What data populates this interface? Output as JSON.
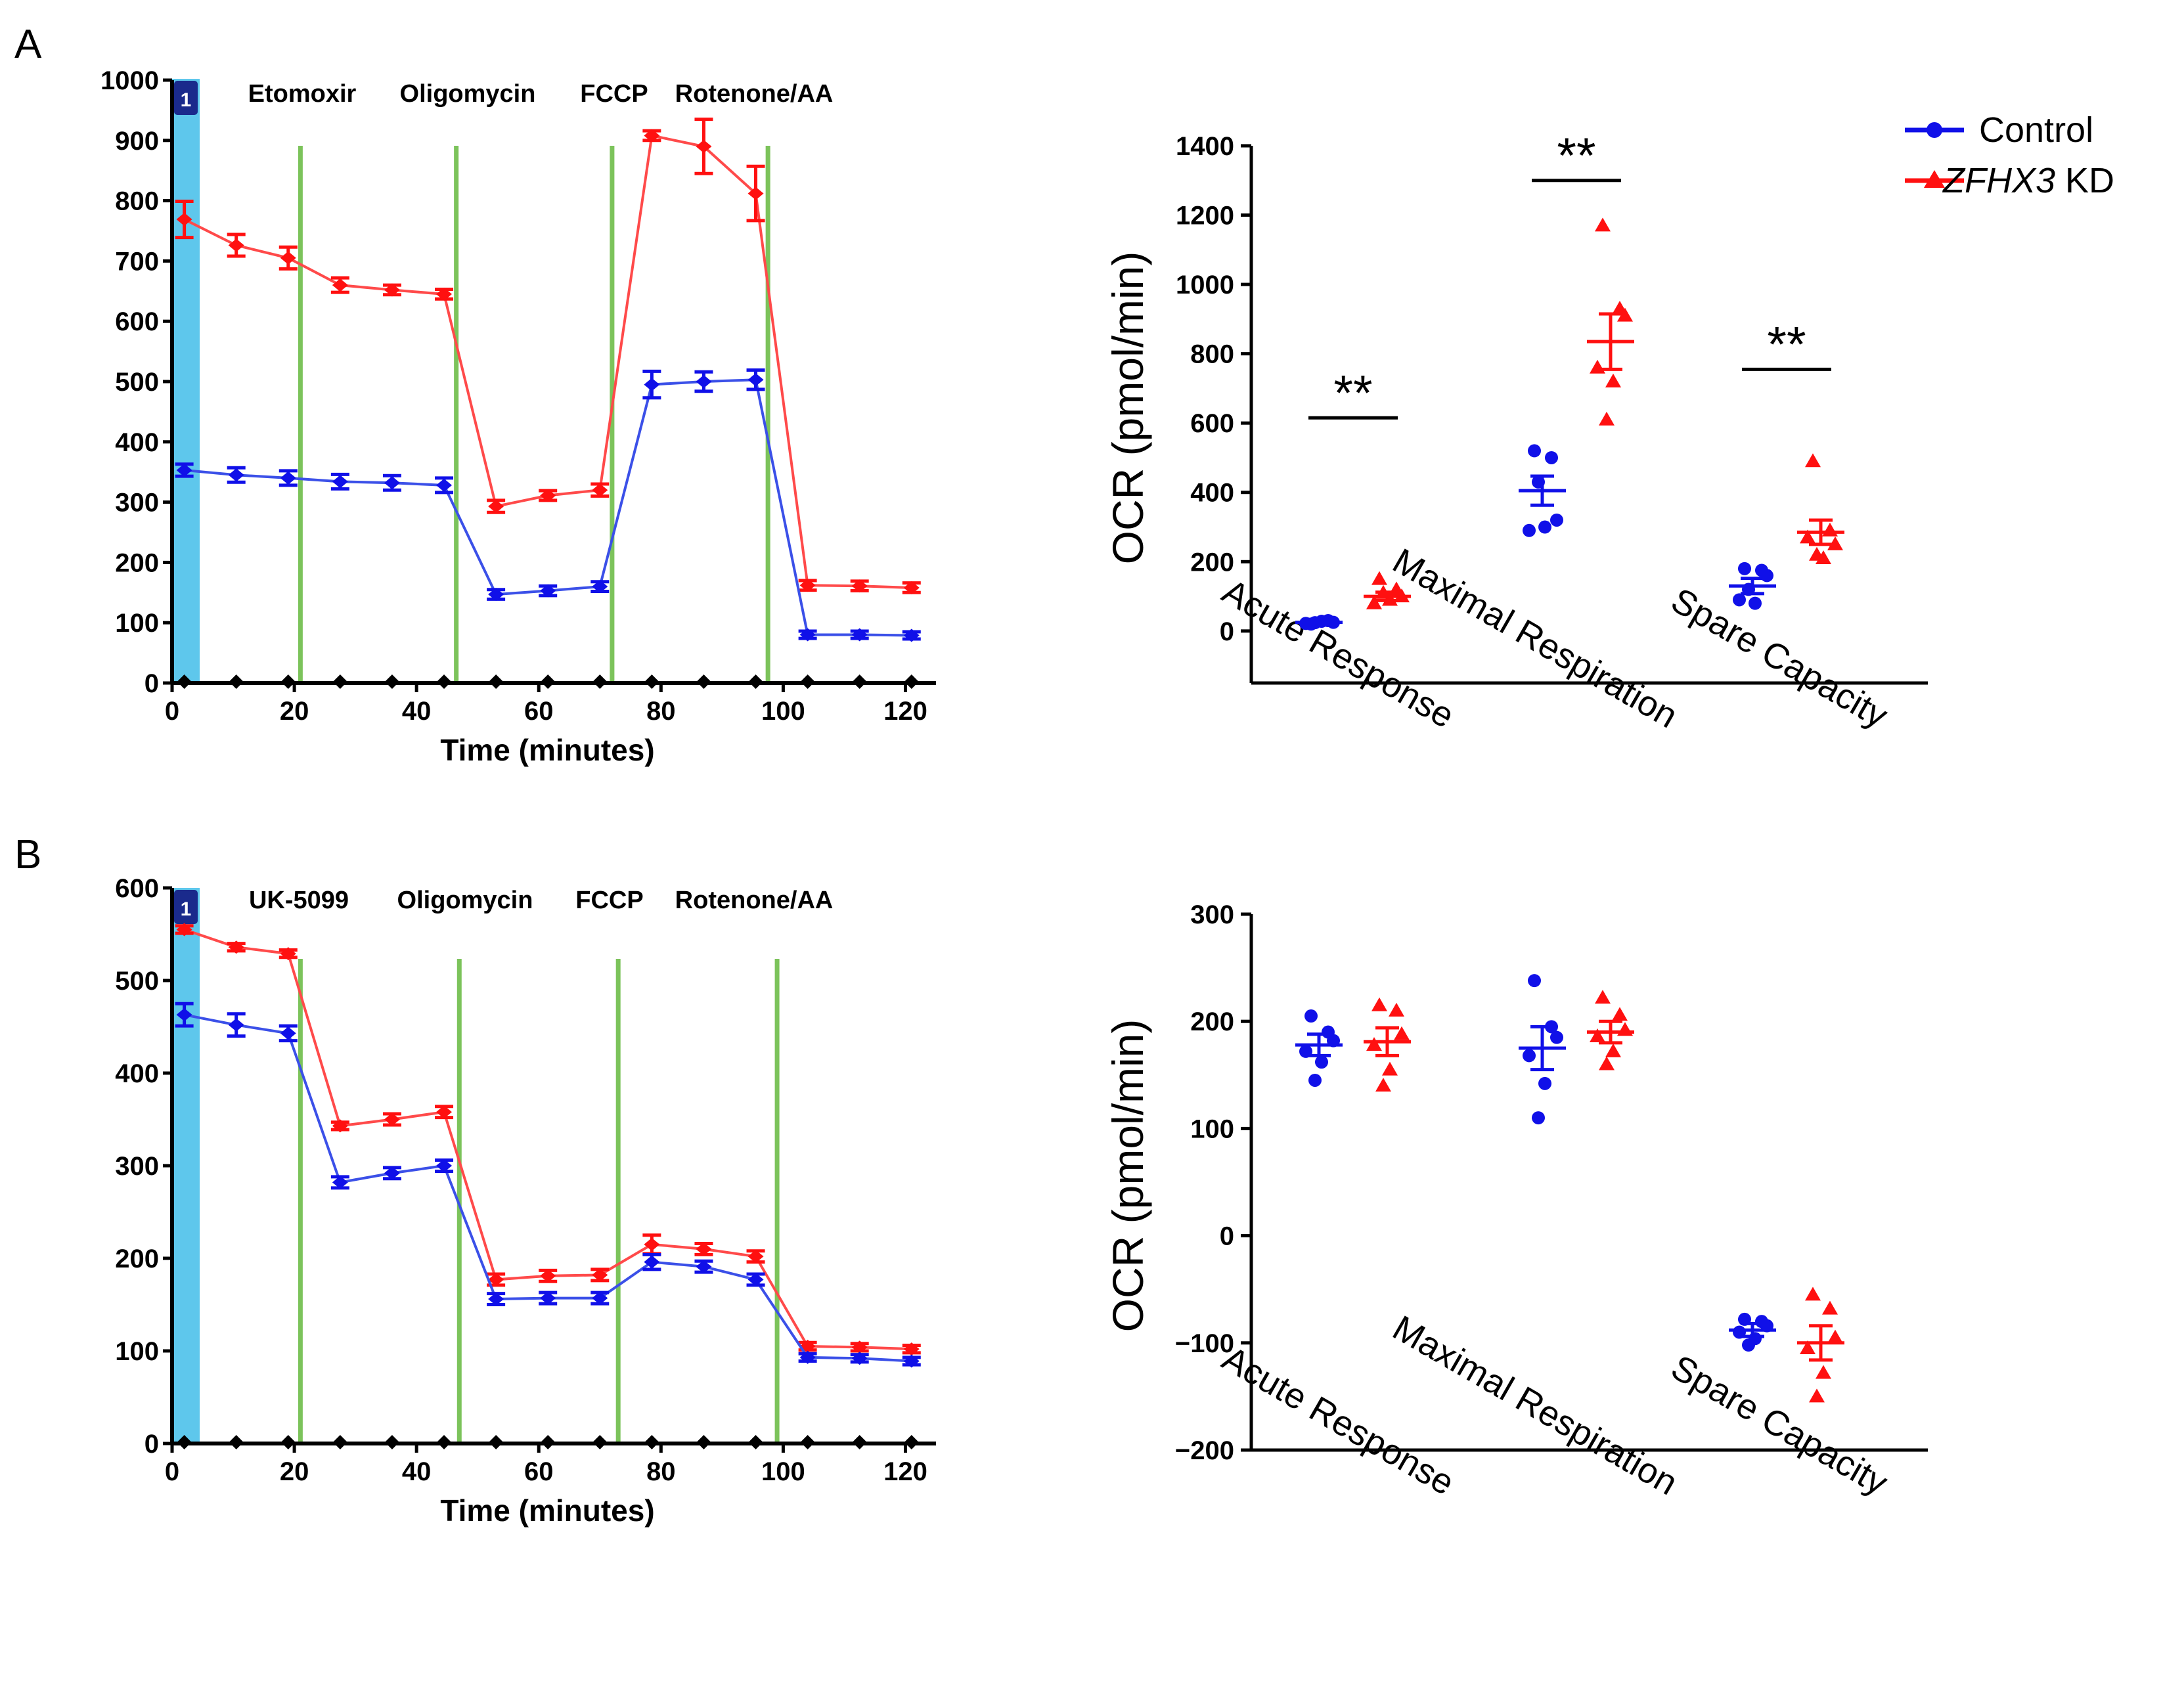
{
  "legend": {
    "control_label": "Control",
    "kd_gene": "ZFHX3",
    "kd_suffix": " KD",
    "control_color": "#1010e8",
    "kd_color": "#ff1010"
  },
  "panels": {
    "A": {
      "letter": "A",
      "port_label": "1",
      "drugs": [
        {
          "label": "Etomoxir",
          "x": 21
        },
        {
          "label": "Oligomycin",
          "x": 46.5
        },
        {
          "label": "FCCP",
          "x": 72
        },
        {
          "label": "Rotenone/AA",
          "x": 97.5
        }
      ],
      "significance": [
        {
          "label": "**",
          "category": 0
        },
        {
          "label": "**",
          "category": 1
        },
        {
          "label": "**",
          "category": 2
        }
      ]
    },
    "B": {
      "letter": "B",
      "port_label": "1",
      "drugs": [
        {
          "label": "UK-5099",
          "x": 21
        },
        {
          "label": "Oligomycin",
          "x": 47
        },
        {
          "label": "FCCP",
          "x": 73
        },
        {
          "label": "Rotenone/AA",
          "x": 99
        }
      ],
      "significance": []
    }
  },
  "chart_data": [
    {
      "id": "A-timecourse",
      "type": "line",
      "xlabel": "Time (minutes)",
      "ylabel": "",
      "xlim": [
        0,
        125
      ],
      "ylim": [
        0,
        1000
      ],
      "xticks": [
        "0",
        "20",
        "40",
        "60",
        "80",
        "100",
        "120"
      ],
      "yticks": [
        "0",
        "100",
        "200",
        "300",
        "400",
        "500",
        "600",
        "700",
        "800",
        "900",
        "1000"
      ],
      "x": [
        2,
        10.5,
        19,
        27.5,
        36,
        44.5,
        53,
        61.5,
        70,
        78.5,
        87,
        95.5,
        104,
        112.5,
        121
      ],
      "series": [
        {
          "name": "Control",
          "values": [
            353,
            345,
            340,
            334,
            332,
            328,
            147,
            153,
            160,
            495,
            500,
            503,
            80,
            80,
            79
          ],
          "errors": [
            10,
            12,
            12,
            12,
            12,
            12,
            8,
            8,
            8,
            22,
            16,
            16,
            6,
            6,
            6
          ]
        },
        {
          "name": "ZFHX3 KD",
          "values": [
            769,
            726,
            705,
            660,
            652,
            645,
            293,
            311,
            320,
            908,
            890,
            812,
            162,
            161,
            158
          ],
          "errors": [
            30,
            18,
            18,
            12,
            8,
            8,
            10,
            8,
            10,
            8,
            45,
            45,
            8,
            8,
            8
          ]
        }
      ],
      "baseline_marker_x": [
        2,
        10.5,
        19,
        27.5,
        36,
        44.5,
        53,
        61.5,
        70,
        78.5,
        87,
        95.5,
        104,
        112.5,
        121
      ]
    },
    {
      "id": "A-summary",
      "type": "scatter",
      "title": "",
      "ylabel": "OCR (pmol/min)",
      "ylim": [
        -150,
        1400
      ],
      "yticks": [
        "0",
        "200",
        "400",
        "600",
        "800",
        "1000",
        "1200",
        "1400"
      ],
      "categories": [
        "Acute Response",
        "Maximal Respiration",
        "Spare Capacity"
      ],
      "series": [
        {
          "name": "Control",
          "mean": [
            25,
            405,
            130
          ],
          "sem": [
            5,
            42,
            22
          ],
          "points": [
            [
              20,
              30,
              25,
              22,
              28,
              24
            ],
            [
              520,
              500,
              320,
              290,
              300,
              430
            ],
            [
              180,
              175,
              160,
              90,
              80,
              120
            ]
          ]
        },
        {
          "name": "ZFHX3 KD",
          "mean": [
            100,
            835,
            285
          ],
          "sem": [
            12,
            80,
            35
          ],
          "points": [
            [
              150,
              120,
              100,
              80,
              90,
              110
            ],
            [
              1170,
              930,
              910,
              760,
              720,
              610
            ],
            [
              490,
              290,
              250,
              270,
              210,
              220
            ]
          ]
        }
      ],
      "significance_y": [
        615,
        1300,
        755
      ]
    },
    {
      "id": "B-timecourse",
      "type": "line",
      "xlabel": "Time (minutes)",
      "ylabel": "",
      "xlim": [
        0,
        125
      ],
      "ylim": [
        0,
        600
      ],
      "xticks": [
        "0",
        "20",
        "40",
        "60",
        "80",
        "100",
        "120"
      ],
      "yticks": [
        "0",
        "100",
        "200",
        "300",
        "400",
        "500",
        "600"
      ],
      "x": [
        2,
        10.5,
        19,
        27.5,
        36,
        44.5,
        53,
        61.5,
        70,
        78.5,
        87,
        95.5,
        104,
        112.5,
        121
      ],
      "series": [
        {
          "name": "Control",
          "values": [
            463,
            452,
            443,
            282,
            292,
            300,
            156,
            157,
            157,
            196,
            191,
            177,
            93,
            92,
            89
          ],
          "errors": [
            12,
            12,
            8,
            6,
            6,
            6,
            6,
            6,
            6,
            8,
            6,
            6,
            4,
            4,
            4
          ]
        },
        {
          "name": "ZFHX3 KD",
          "values": [
            555,
            536,
            529,
            343,
            350,
            358,
            177,
            181,
            182,
            215,
            210,
            202,
            105,
            104,
            102
          ],
          "errors": [
            4,
            4,
            4,
            4,
            6,
            6,
            6,
            6,
            6,
            10,
            6,
            6,
            4,
            4,
            4
          ]
        }
      ],
      "baseline_marker_x": [
        2,
        10.5,
        19,
        27.5,
        36,
        44.5,
        53,
        61.5,
        70,
        78.5,
        87,
        95.5,
        104,
        112.5,
        121
      ]
    },
    {
      "id": "B-summary",
      "type": "scatter",
      "title": "",
      "ylabel": "OCR (pmol/min)",
      "ylim": [
        -200,
        300
      ],
      "yticks": [
        "−200",
        "−100",
        "0",
        "100",
        "200",
        "300"
      ],
      "ytick_values": [
        -200,
        -100,
        0,
        100,
        200,
        300
      ],
      "categories": [
        "Acute Response",
        "Maximal Respiration",
        "Spare Capacity"
      ],
      "series": [
        {
          "name": "Control",
          "mean": [
            178,
            175,
            -88
          ],
          "sem": [
            10,
            20,
            6
          ],
          "points": [
            [
              205,
              190,
              182,
              172,
              162,
              145
            ],
            [
              238,
              195,
              185,
              168,
              142,
              110
            ],
            [
              -78,
              -80,
              -84,
              -90,
              -96,
              -102
            ]
          ]
        },
        {
          "name": "ZFHX3 KD",
          "mean": [
            181,
            190,
            -100
          ],
          "sem": [
            13,
            10,
            16
          ],
          "points": [
            [
              215,
              210,
              188,
              178,
              155,
              140
            ],
            [
              222,
              206,
              192,
              186,
              172,
              160
            ],
            [
              -55,
              -68,
              -95,
              -105,
              -128,
              -150
            ]
          ]
        }
      ]
    }
  ]
}
